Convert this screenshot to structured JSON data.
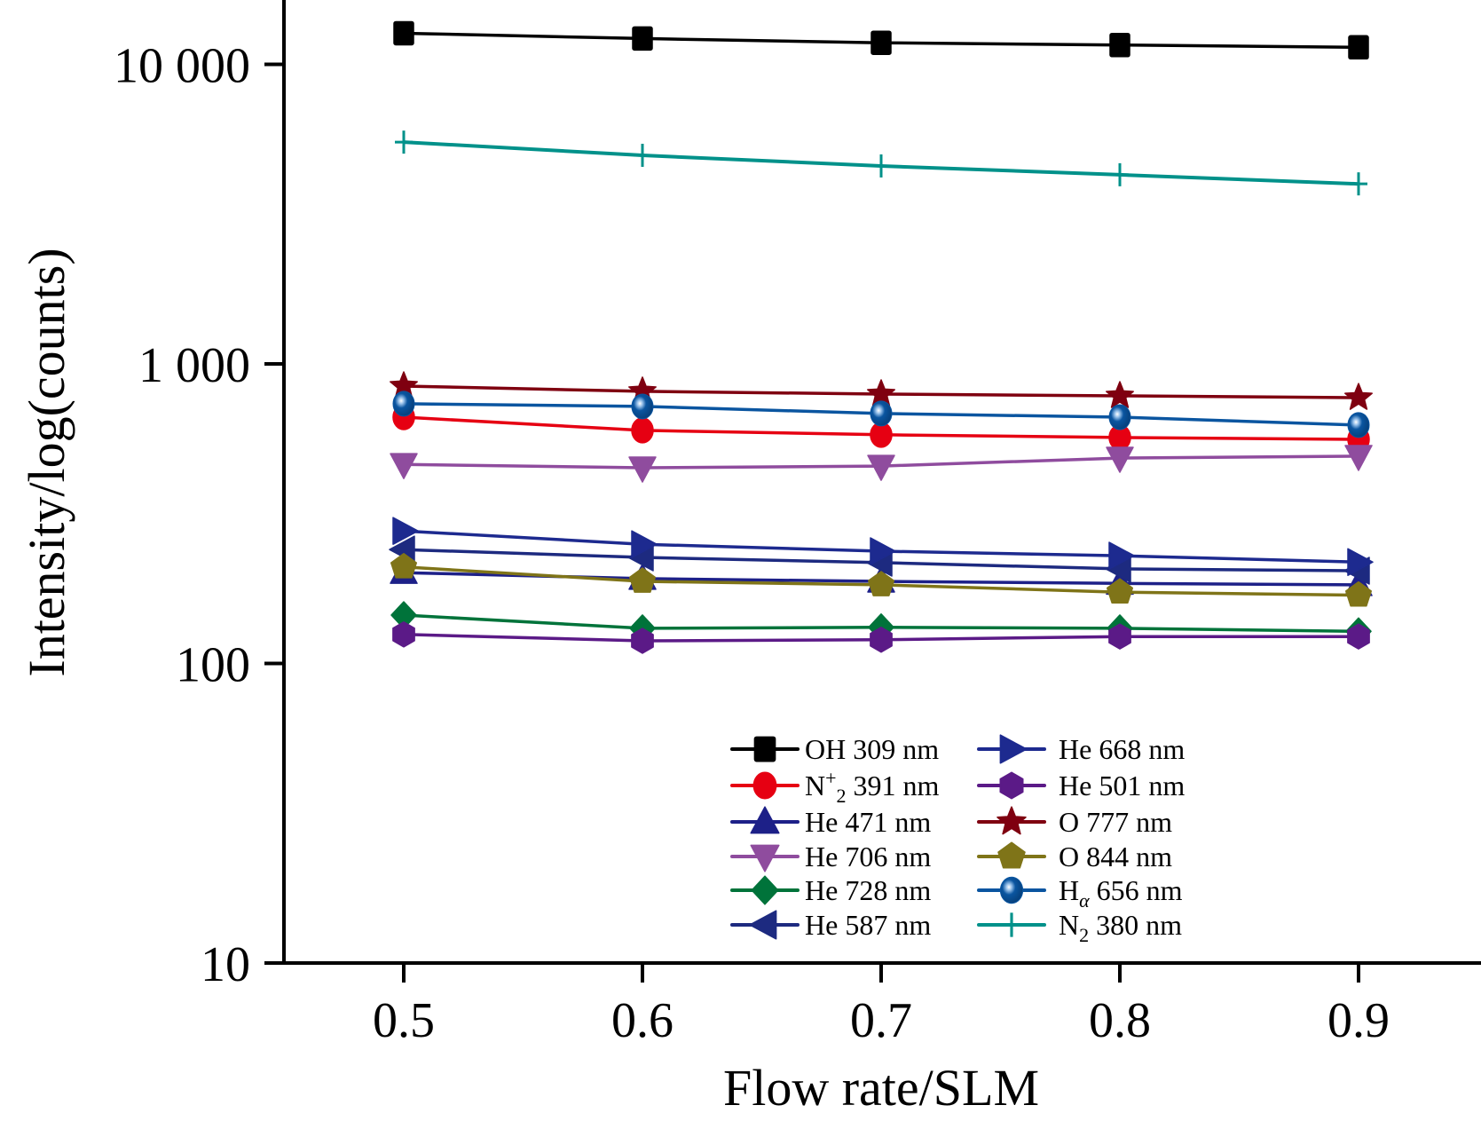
{
  "chart_data": {
    "type": "line",
    "title": "",
    "xlabel": "Flow rate/SLM",
    "ylabel": "Intensity/log(counts)",
    "yscale": "log",
    "xlim": [
      0.45,
      0.95
    ],
    "ylim": [
      10,
      16400
    ],
    "grid": false,
    "legend_position": "bottom-center",
    "x": [
      0.5,
      0.6,
      0.7,
      0.8,
      0.9
    ],
    "x_ticks": [
      {
        "value": 0.5,
        "label": "0.5"
      },
      {
        "value": 0.6,
        "label": "0.6"
      },
      {
        "value": 0.7,
        "label": "0.7"
      },
      {
        "value": 0.8,
        "label": "0.8"
      },
      {
        "value": 0.9,
        "label": "0.9"
      }
    ],
    "y_ticks": [
      {
        "value": 10,
        "label": "10"
      },
      {
        "value": 100,
        "label": "100"
      },
      {
        "value": 1000,
        "label": "1 000"
      },
      {
        "value": 10000,
        "label": "10 000"
      }
    ],
    "series": [
      {
        "name": "OH 309 nm",
        "label_main": "OH 309 nm",
        "color": "#000000",
        "marker": "square",
        "values": [
          12700,
          12200,
          11800,
          11600,
          11400
        ]
      },
      {
        "name": "N+2 391 nm",
        "label_main": "N",
        "label_sup": "+",
        "label_sub": "2",
        "label_rest": " 391 nm",
        "color": "#e60012",
        "marker": "circle",
        "values": [
          664,
          600,
          580,
          568,
          560
        ]
      },
      {
        "name": "He 471 nm",
        "label_main": "He 471 nm",
        "color": "#1d2088",
        "marker": "triangle-up",
        "values": [
          201,
          192,
          188,
          185,
          183
        ]
      },
      {
        "name": "He 706 nm",
        "label_main": "He 706 nm",
        "color": "#8f4c9e",
        "marker": "triangle-down",
        "values": [
          462,
          450,
          456,
          485,
          492
        ]
      },
      {
        "name": "He 728 nm",
        "label_main": "He 728 nm",
        "color": "#00733a",
        "marker": "diamond",
        "values": [
          145,
          131,
          132,
          131,
          128
        ]
      },
      {
        "name": "He 587 nm",
        "label_main": "He 587 nm",
        "color": "#1d2a80",
        "marker": "triangle-left",
        "values": [
          240,
          226,
          217,
          207,
          204
        ]
      },
      {
        "name": "He 668 nm",
        "label_main": "He 668 nm",
        "color": "#1d2a8f",
        "marker": "triangle-right",
        "values": [
          277,
          250,
          237,
          229,
          218
        ]
      },
      {
        "name": "He 501 nm",
        "label_main": "He 501 nm",
        "color": "#5b1a87",
        "marker": "hexagon",
        "values": [
          125,
          119,
          120,
          123,
          123
        ]
      },
      {
        "name": "O 777 nm",
        "label_main": "O 777 nm",
        "color": "#7f0010",
        "marker": "star",
        "values": [
          843,
          810,
          793,
          782,
          771
        ]
      },
      {
        "name": "O 844 nm",
        "label_main": "O 844 nm",
        "color": "#7f7418",
        "marker": "pentagon",
        "values": [
          210,
          188,
          183,
          173,
          169
        ]
      },
      {
        "name": "Hα 656 nm",
        "label_main": "H",
        "label_sub": "α",
        "label_rest": " 656 nm",
        "color": "#0a55a0",
        "marker": "sphere",
        "values": [
          736,
          721,
          683,
          664,
          625
        ]
      },
      {
        "name": "N2 380 nm",
        "label_main": "N",
        "label_sub": "2",
        "label_rest": "  380 nm",
        "color": "#00918a",
        "marker": "plus",
        "values": [
          5500,
          4970,
          4580,
          4280,
          3990
        ]
      }
    ]
  }
}
